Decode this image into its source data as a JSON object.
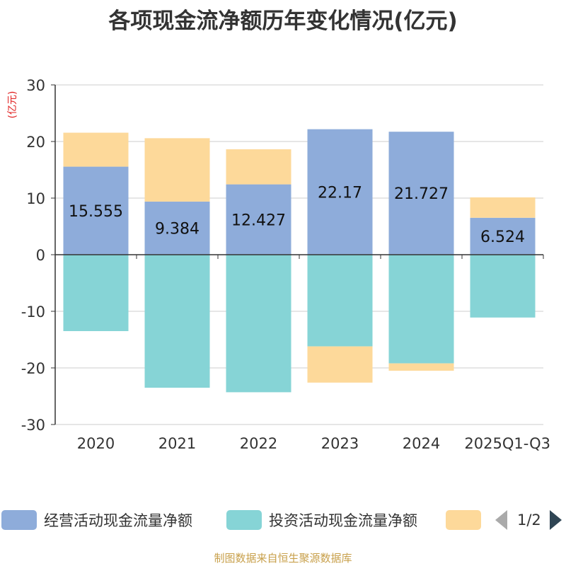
{
  "title": "各项现金流净额历年变化情况(亿元)",
  "source": "制图数据来自恒生聚源数据库",
  "legend": {
    "items": [
      {
        "label": "经营活动现金流量净额",
        "color": "#8eacda"
      },
      {
        "label": "投资活动现金流量净额",
        "color": "#86d4d6"
      },
      {
        "label": "",
        "color": "#fdd99a"
      }
    ],
    "page": "1/2"
  },
  "chart_data": {
    "type": "bar",
    "stacked": true,
    "categories": [
      "2020",
      "2021",
      "2022",
      "2023",
      "2024",
      "2025Q1-Q3"
    ],
    "ylabel": "(亿元)",
    "ylim": [
      -30,
      30
    ],
    "yticks": [
      30,
      20,
      10,
      0,
      -10,
      -20,
      -30
    ],
    "grid": true,
    "series": [
      {
        "name": "经营活动现金流量净额",
        "color": "#8eacda",
        "values": [
          15.555,
          9.384,
          12.427,
          22.17,
          21.727,
          6.524
        ],
        "labels": [
          "15.555",
          "9.384",
          "12.427",
          "22.17",
          "21.727",
          "6.524"
        ]
      },
      {
        "name": "投资活动现金流量净额",
        "color": "#86d4d6",
        "values": [
          -13.5,
          -23.5,
          -24.3,
          -16.2,
          -19.2,
          -11.1
        ]
      },
      {
        "color": "#fdd99a",
        "values": [
          6.0,
          11.2,
          6.2,
          -6.4,
          -1.3,
          3.6
        ]
      }
    ]
  }
}
